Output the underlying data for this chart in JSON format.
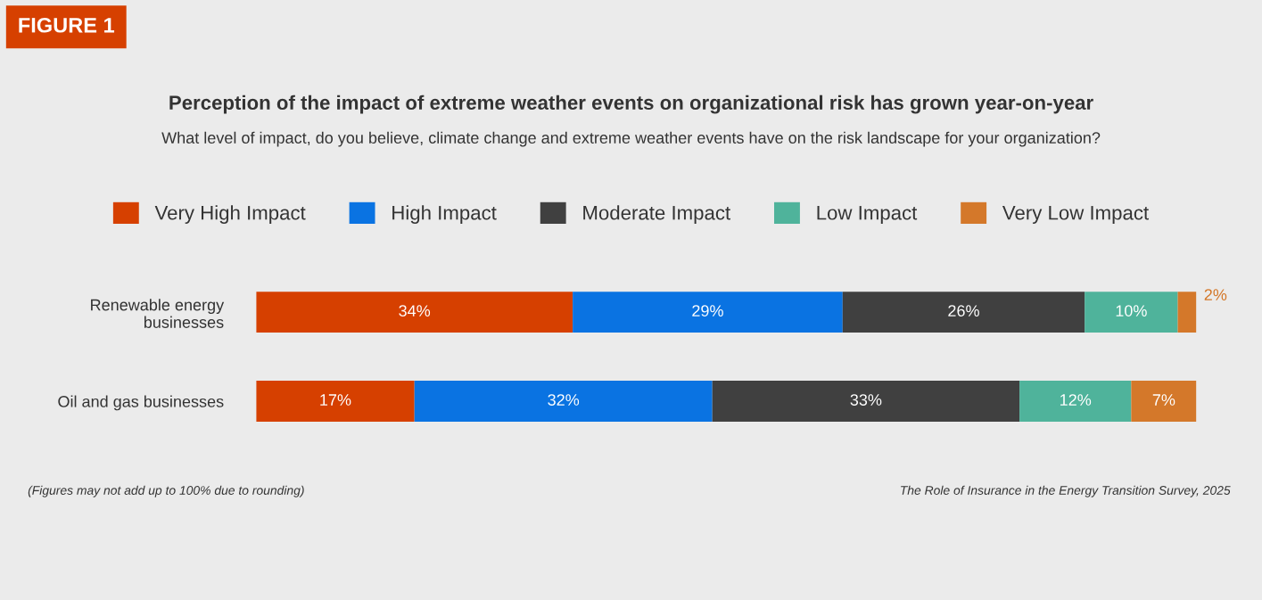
{
  "chart_data": {
    "type": "bar",
    "orientation": "horizontal",
    "stacked": true,
    "title": "Perception of the impact of extreme weather events on organizational risk has grown year-on-year",
    "subtitle": "What level of impact, do you believe, climate change and extreme weather events have on the risk landscape for your organization?",
    "categories": [
      "Renewable energy\nbusinesses",
      "Oil and gas businesses"
    ],
    "series": [
      {
        "name": "Very High Impact",
        "color": "#d64000",
        "values": [
          34,
          17
        ],
        "value_labels": [
          "34%",
          "17%"
        ]
      },
      {
        "name": "High Impact",
        "color": "#0a73e2",
        "values": [
          29,
          32
        ],
        "value_labels": [
          "29%",
          "32%"
        ]
      },
      {
        "name": "Moderate Impact",
        "color": "#404040",
        "values": [
          26,
          33
        ],
        "value_labels": [
          "26%",
          "33%"
        ]
      },
      {
        "name": "Low Impact",
        "color": "#4fb39b",
        "values": [
          10,
          12
        ],
        "value_labels": [
          "10%",
          "12%"
        ]
      },
      {
        "name": "Very Low Impact",
        "color": "#d4782a",
        "values": [
          2,
          7
        ],
        "value_labels": [
          "2%",
          "7%"
        ]
      }
    ],
    "legend": "top",
    "grid": false,
    "tick_labels": "y",
    "annotations": [
      "FIGURE 1",
      "(Figures may not add up to 100% due to rounding)",
      "The Role of Insurance in the Energy Transition Survey, 2025"
    ]
  }
}
